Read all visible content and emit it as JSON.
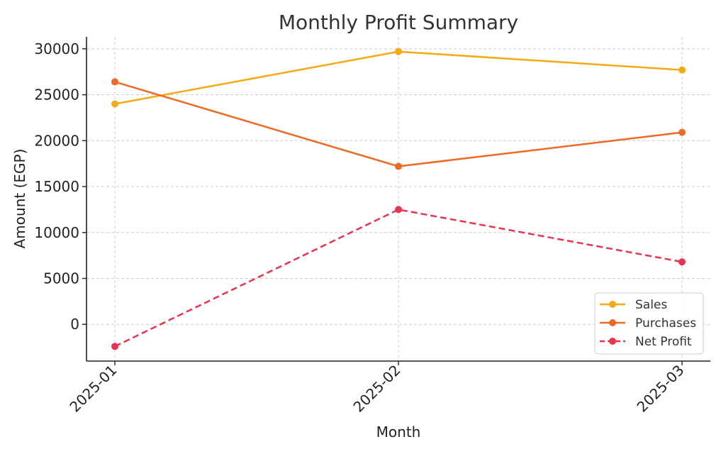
{
  "chart_data": {
    "type": "line",
    "title": "Monthly Profit Summary",
    "xlabel": "Month",
    "ylabel": "Amount (EGP)",
    "categories": [
      "2025-01",
      "2025-02",
      "2025-03"
    ],
    "ylim": [
      -4000,
      31300
    ],
    "yticks": [
      0,
      5000,
      10000,
      15000,
      20000,
      25000,
      30000
    ],
    "grid": true,
    "legend_position": "lower-right",
    "series": [
      {
        "name": "Sales",
        "values": [
          24000,
          29700,
          27700
        ],
        "color": "#f5a915",
        "style": "solid"
      },
      {
        "name": "Purchases",
        "values": [
          26400,
          17200,
          20900
        ],
        "color": "#ee6a24",
        "style": "solid"
      },
      {
        "name": "Net Profit",
        "values": [
          -2400,
          12500,
          6800
        ],
        "color": "#e8344e",
        "style": "dashed"
      }
    ]
  }
}
